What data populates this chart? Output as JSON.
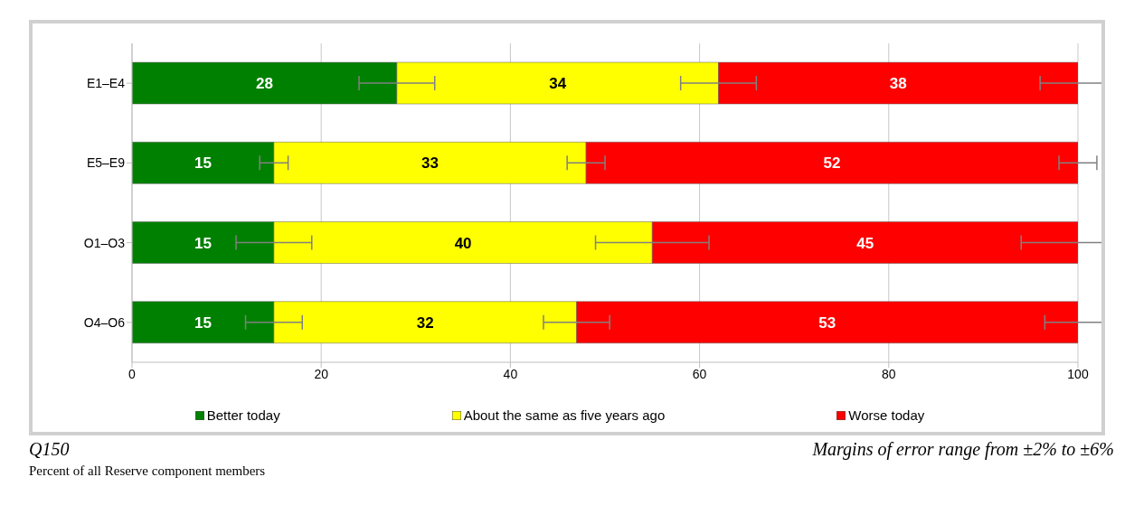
{
  "chart_data": {
    "type": "bar",
    "orientation": "horizontal",
    "stacked": true,
    "categories": [
      "E1–E4",
      "E5–E9",
      "O1–O3",
      "O4–O6"
    ],
    "series": [
      {
        "name": "Better today",
        "color": "#008000",
        "values": [
          28,
          15,
          15,
          15
        ],
        "errors": [
          4,
          1.5,
          4,
          3
        ]
      },
      {
        "name": "About the same as five years ago",
        "color": "#ffff00",
        "values": [
          34,
          33,
          40,
          32
        ],
        "errors": [
          4,
          2,
          6,
          3.5
        ]
      },
      {
        "name": "Worse today",
        "color": "#ff0000",
        "values": [
          38,
          52,
          45,
          53
        ],
        "errors": [
          4,
          2,
          6,
          3.5
        ]
      }
    ],
    "xlim": [
      0,
      100
    ],
    "xticks": [
      0,
      20,
      40,
      60,
      80,
      100
    ],
    "grid": "x",
    "legend": "bottom",
    "data_labels": true,
    "annotations": [
      "Q150",
      "Margins of error range from ±2% to ±6%",
      "Percent of all Reserve component members"
    ]
  }
}
